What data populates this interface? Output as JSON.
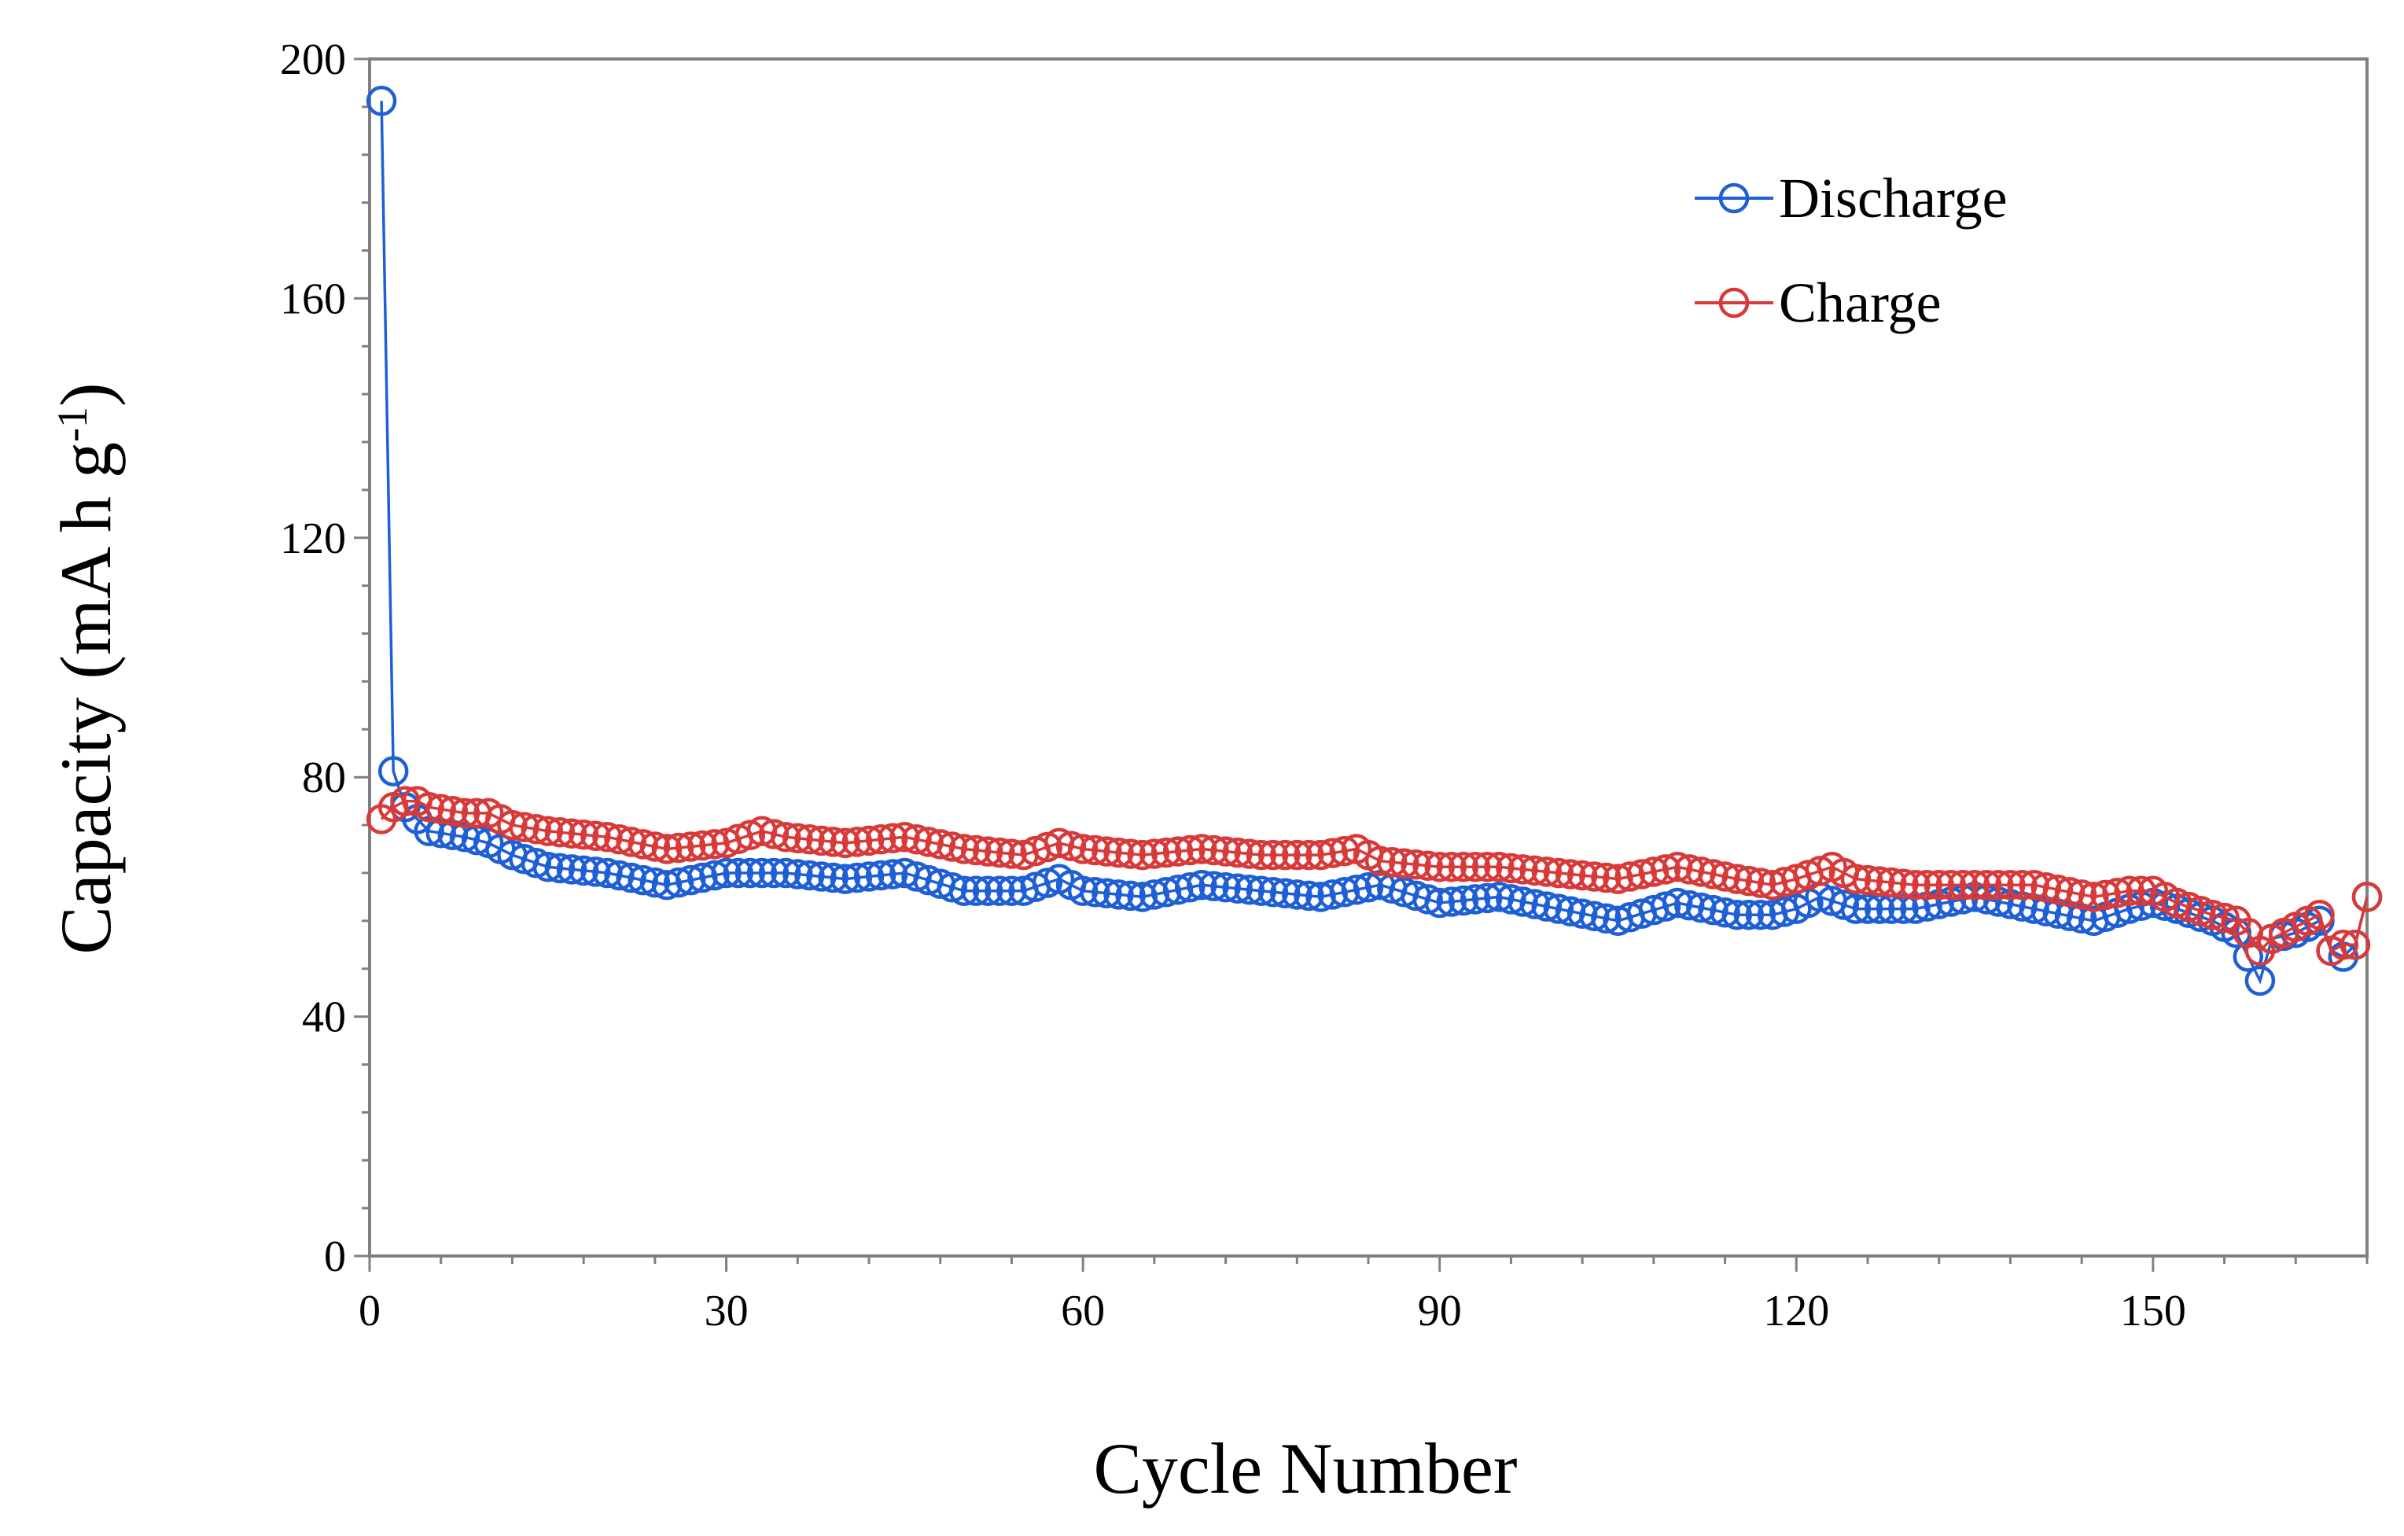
{
  "chart_data": {
    "type": "line",
    "title": "",
    "xlabel": "Cycle Number",
    "ylabel_main": "Capacity (mA h g",
    "ylabel_sup": "-1",
    "ylabel_close": ")",
    "xlim": [
      0,
      168
    ],
    "ylim": [
      0,
      200
    ],
    "xticks": [
      0,
      30,
      60,
      90,
      120,
      150
    ],
    "xtick_labels": [
      "0",
      "30",
      "60",
      "90",
      "120",
      "150"
    ],
    "yticks": [
      0,
      40,
      80,
      120,
      160,
      200
    ],
    "ytick_labels": [
      "0",
      "40",
      "80",
      "120",
      "160",
      "200"
    ],
    "grid": false,
    "legend_position": "top-right",
    "marker": "open-circle",
    "series": [
      {
        "name": "Discharge",
        "color": "#1f5fd6",
        "x": [
          1,
          2,
          3,
          4,
          5,
          8,
          10,
          12,
          15,
          20,
          25,
          30,
          35,
          40,
          45,
          50,
          55,
          58,
          60,
          65,
          70,
          75,
          80,
          85,
          90,
          95,
          100,
          105,
          110,
          115,
          118,
          120,
          122,
          125,
          130,
          135,
          140,
          145,
          148,
          150,
          152,
          155,
          157,
          158,
          159,
          160,
          162,
          164,
          165,
          166,
          167,
          168
        ],
        "values": [
          193,
          81,
          75,
          73,
          71,
          70,
          69,
          67,
          65,
          64,
          62,
          64,
          64,
          63,
          64,
          61,
          61,
          63,
          61,
          60,
          62,
          61,
          60,
          62,
          59,
          60,
          58,
          56,
          59,
          57,
          57,
          58,
          60,
          58,
          58,
          60,
          58,
          56,
          58,
          59,
          58,
          56,
          54,
          50,
          46,
          53,
          54,
          56,
          51,
          50,
          52,
          60
        ]
      },
      {
        "name": "Charge",
        "color": "#d83a3a",
        "x": [
          1,
          2,
          3,
          4,
          5,
          8,
          10,
          12,
          15,
          20,
          25,
          30,
          33,
          35,
          40,
          45,
          50,
          55,
          58,
          60,
          65,
          70,
          75,
          80,
          83,
          85,
          90,
          95,
          100,
          105,
          110,
          115,
          118,
          120,
          123,
          125,
          130,
          135,
          140,
          145,
          148,
          150,
          152,
          155,
          157,
          158,
          159,
          160,
          162,
          164,
          165,
          166,
          167,
          168
        ],
        "values": [
          73,
          75,
          76,
          76,
          75,
          74,
          74,
          72,
          71,
          70,
          68,
          69,
          71,
          70,
          69,
          70,
          68,
          67,
          69,
          68,
          67,
          68,
          67,
          67,
          68,
          66,
          65,
          65,
          64,
          63,
          65,
          63,
          62,
          63,
          65,
          63,
          62,
          62,
          62,
          60,
          61,
          61,
          59,
          57,
          56,
          54,
          51,
          53,
          55,
          57,
          51,
          52,
          52,
          60
        ]
      }
    ]
  }
}
